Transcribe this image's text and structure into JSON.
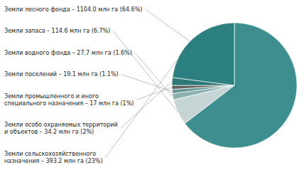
{
  "chart_data": {
    "type": "pie",
    "categories": [
      "Земли лесного фонда – 1104.0 млн га (64.6%)",
      "Земли запаса – 114.6 млн га (6.7%)",
      "Земли водного фонда – 27.7 млн га (1.6%)",
      "Земли поселений – 19.1 млн га (1.1%)",
      "Земли промышленного и иного\nспециального назначения – 17 млн га (1%)",
      "Земли особо охраняемых территорий\nи объектов – 34.2 млн га (2%)",
      "Земли сельскохозяйственного\nназначения – 393.2 млн га (23%)"
    ],
    "values": [
      64.6,
      6.7,
      1.6,
      1.1,
      1.0,
      2.0,
      23.0
    ],
    "colors": [
      "#3d8e8e",
      "#c5d5d5",
      "#8ab0b0",
      "#6a9898",
      "#606060",
      "#2d7878",
      "#2d8080"
    ]
  }
}
